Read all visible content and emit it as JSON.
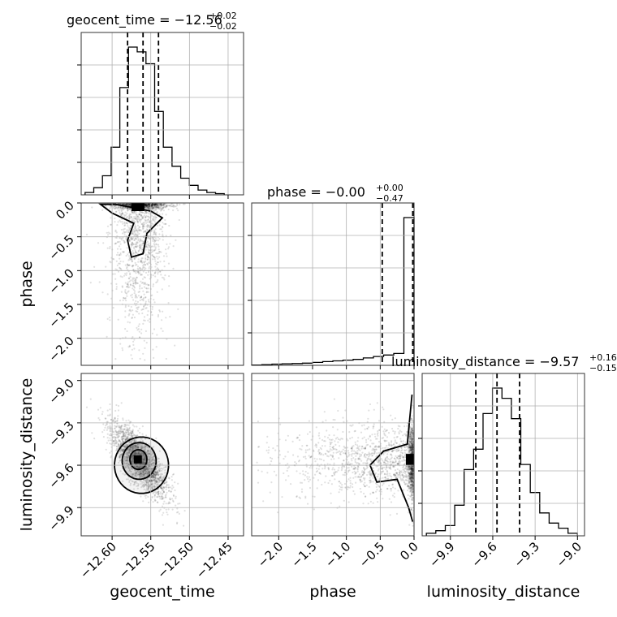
{
  "chart_data": {
    "type": "corner",
    "parameters": [
      "geocent_time",
      "phase",
      "luminosity_distance"
    ],
    "titles": [
      {
        "label": "geocent_time = −12.56",
        "plus": "+0.02",
        "minus": "−0.02"
      },
      {
        "label": "phase = −0.00",
        "plus": "+0.00",
        "minus": "−0.47"
      },
      {
        "label": "luminosity_distance = −9.57",
        "plus": "+0.16",
        "minus": "−0.15"
      }
    ],
    "axes": {
      "geocent_time": {
        "range": [
          -12.64,
          -12.43
        ],
        "ticks": [
          -12.6,
          -12.55,
          -12.5,
          -12.45
        ],
        "tick_labels": [
          "−12.60",
          "−12.55",
          "−12.50",
          "−12.45"
        ]
      },
      "phase": {
        "range": [
          -2.4,
          0.0
        ],
        "ticks": [
          -2.0,
          -1.5,
          -1.0,
          -0.5,
          0.0
        ],
        "tick_labels": [
          "−2.0",
          "−1.5",
          "−1.0",
          "−0.5",
          "0.0"
        ]
      },
      "luminosity_distance": {
        "range": [
          -10.1,
          -8.95
        ],
        "ticks": [
          -9.9,
          -9.6,
          -9.3,
          -9.0
        ],
        "tick_labels": [
          "−9.9",
          "−9.6",
          "−9.3",
          "−9.0"
        ]
      }
    },
    "quantiles": {
      "geocent_time": [
        -12.58,
        -12.56,
        -12.54
      ],
      "phase": [
        -0.47,
        0.0,
        0.0
      ],
      "luminosity_distance": [
        -9.72,
        -9.57,
        -9.41
      ]
    },
    "histograms": {
      "geocent_time": [
        1,
        3,
        8,
        20,
        45,
        62,
        60,
        55,
        35,
        20,
        12,
        7,
        4,
        2,
        1,
        0.5
      ],
      "phase": [
        0.2,
        0.5,
        0.8,
        1,
        1.2,
        1.5,
        2,
        2.5,
        3,
        3.5,
        4,
        5,
        6,
        7,
        8,
        100
      ],
      "luminosity_distance": [
        1,
        2,
        4,
        12,
        26,
        34,
        48,
        58,
        54,
        46,
        28,
        17,
        9,
        5,
        3,
        1
      ]
    },
    "grid": true
  }
}
